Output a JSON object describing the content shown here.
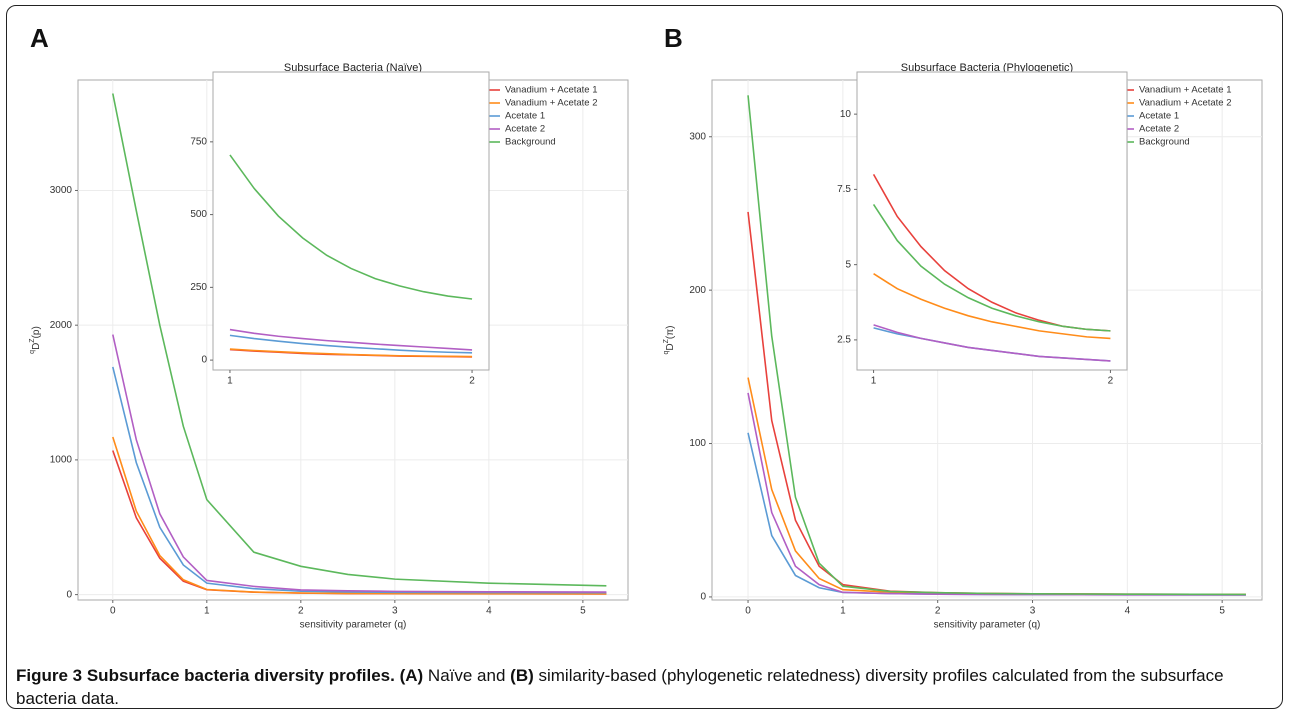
{
  "chart_data": [
    {
      "type": "line",
      "panel_label": "A",
      "title": "Subsurface Bacteria (Naïve)",
      "xlabel": "sensitivity parameter (q)",
      "ylabel": [
        "q",
        "D",
        "Z",
        "(p)"
      ],
      "x": [
        0,
        0.25,
        0.5,
        0.75,
        1,
        1.5,
        2,
        2.5,
        3,
        4,
        5.25
      ],
      "series": [
        {
          "name": "Vanadium + Acetate 1",
          "color": "#e8413c",
          "values": [
            1070,
            570,
            270,
            100,
            36,
            18,
            11,
            8,
            7,
            6,
            5
          ]
        },
        {
          "name": "Vanadium + Acetate 2",
          "color": "#ff8c1a",
          "values": [
            1170,
            620,
            290,
            110,
            38,
            19,
            12,
            9,
            8,
            7,
            6
          ]
        },
        {
          "name": "Acetate 1",
          "color": "#5b9bd5",
          "values": [
            1690,
            980,
            500,
            220,
            85,
            44,
            25,
            20,
            17,
            15,
            14
          ]
        },
        {
          "name": "Acetate 2",
          "color": "#b25fc4",
          "values": [
            1930,
            1150,
            600,
            280,
            105,
            61,
            35,
            28,
            24,
            21,
            19
          ]
        },
        {
          "name": "Background",
          "color": "#5cb85c",
          "values": [
            3720,
            2850,
            2000,
            1250,
            705,
            315,
            210,
            150,
            115,
            85,
            65
          ]
        }
      ],
      "xlim": [
        -0.37,
        5.48
      ],
      "ylim": [
        -40,
        3820
      ],
      "xticks": [
        0,
        1,
        2,
        3,
        4,
        5
      ],
      "yticks": [
        0,
        1000,
        2000,
        3000
      ],
      "grid": true,
      "legend": "top-right"
    },
    {
      "type": "line",
      "x": [
        1,
        1.1,
        1.2,
        1.3,
        1.4,
        1.5,
        1.6,
        1.7,
        1.8,
        1.9,
        2
      ],
      "series": [
        {
          "color": "#e8413c",
          "values": [
            36,
            31,
            27,
            23,
            20,
            18,
            16,
            14,
            13,
            12,
            11
          ]
        },
        {
          "color": "#ff8c1a",
          "values": [
            38,
            33,
            29,
            25,
            22,
            19,
            17,
            15,
            14,
            13,
            12
          ]
        },
        {
          "color": "#5b9bd5",
          "values": [
            85,
            74,
            65,
            57,
            50,
            44,
            39,
            34,
            30,
            27,
            25
          ]
        },
        {
          "color": "#b25fc4",
          "values": [
            105,
            92,
            82,
            74,
            67,
            61,
            55,
            50,
            45,
            40,
            35
          ]
        },
        {
          "color": "#5cb85c",
          "values": [
            705,
            590,
            495,
            420,
            360,
            315,
            280,
            255,
            235,
            220,
            210
          ]
        }
      ],
      "xlim": [
        0.93,
        2.07
      ],
      "ylim": [
        -34,
        990
      ],
      "xticks": [
        1,
        2
      ],
      "yticks": [
        0,
        250,
        500,
        750
      ],
      "grid": false
    },
    {
      "type": "line",
      "panel_label": "B",
      "title": "Subsurface Bacteria (Phylogenetic)",
      "xlabel": "sensitivity parameter (q)",
      "ylabel": [
        "q",
        "D",
        "Z",
        "(π)"
      ],
      "x": [
        0,
        0.25,
        0.5,
        0.75,
        1,
        1.5,
        2,
        2.5,
        3,
        4,
        5.25
      ],
      "series": [
        {
          "name": "Vanadium + Acetate 1",
          "color": "#e8413c",
          "values": [
            251,
            115,
            50,
            20,
            8,
            3.75,
            2.8,
            2.3,
            2,
            1.8,
            1.6
          ]
        },
        {
          "name": "Vanadium + Acetate 2",
          "color": "#ff8c1a",
          "values": [
            143,
            70,
            30,
            12,
            4.7,
            3.1,
            2.55,
            2.2,
            1.95,
            1.75,
            1.6
          ]
        },
        {
          "name": "Acetate 1",
          "color": "#5b9bd5",
          "values": [
            107,
            40,
            14,
            6,
            2.9,
            2.15,
            1.8,
            1.6,
            1.5,
            1.4,
            1.3
          ]
        },
        {
          "name": "Acetate 2",
          "color": "#b25fc4",
          "values": [
            133,
            55,
            20,
            8,
            3,
            2.15,
            1.8,
            1.6,
            1.5,
            1.4,
            1.3
          ]
        },
        {
          "name": "Background",
          "color": "#5cb85c",
          "values": [
            327,
            170,
            65,
            22,
            7,
            3.55,
            2.8,
            2.3,
            2,
            1.8,
            1.6
          ]
        }
      ],
      "xlim": [
        -0.38,
        5.42
      ],
      "ylim": [
        -2,
        337
      ],
      "xticks": [
        0,
        1,
        2,
        3,
        4,
        5
      ],
      "yticks": [
        0,
        100,
        200,
        300
      ],
      "grid": true,
      "legend": "top-right"
    },
    {
      "type": "line",
      "x": [
        1,
        1.1,
        1.2,
        1.3,
        1.4,
        1.5,
        1.6,
        1.7,
        1.8,
        1.9,
        2
      ],
      "series": [
        {
          "color": "#e8413c",
          "values": [
            8,
            6.6,
            5.6,
            4.8,
            4.2,
            3.75,
            3.4,
            3.15,
            2.95,
            2.85,
            2.8
          ]
        },
        {
          "color": "#ff8c1a",
          "values": [
            4.7,
            4.2,
            3.85,
            3.55,
            3.3,
            3.1,
            2.95,
            2.8,
            2.7,
            2.6,
            2.55
          ]
        },
        {
          "color": "#5b9bd5",
          "values": [
            2.9,
            2.7,
            2.55,
            2.4,
            2.25,
            2.15,
            2.05,
            1.95,
            1.9,
            1.85,
            1.8
          ]
        },
        {
          "color": "#b25fc4",
          "values": [
            3,
            2.75,
            2.55,
            2.4,
            2.25,
            2.15,
            2.05,
            1.95,
            1.9,
            1.85,
            1.8
          ]
        },
        {
          "color": "#5cb85c",
          "values": [
            7,
            5.8,
            4.95,
            4.35,
            3.9,
            3.55,
            3.3,
            3.1,
            2.95,
            2.85,
            2.8
          ]
        }
      ],
      "xlim": [
        0.93,
        2.07
      ],
      "ylim": [
        1.5,
        11.4
      ],
      "xticks": [
        1,
        2
      ],
      "yticks": [
        2.5,
        5,
        7.5,
        10
      ],
      "grid": false
    }
  ],
  "caption": [
    {
      "text": "Figure 3 Subsurface bacteria diversity profiles.",
      "bold": true
    },
    {
      "text": " ",
      "bold": false
    },
    {
      "text": "(A)",
      "bold": true
    },
    {
      "text": " Naïve and ",
      "bold": false
    },
    {
      "text": "(B)",
      "bold": true
    },
    {
      "text": " similarity-based (phylogenetic relatedness) diversity profiles calculated from the subsurface bacteria data.",
      "bold": false
    }
  ]
}
